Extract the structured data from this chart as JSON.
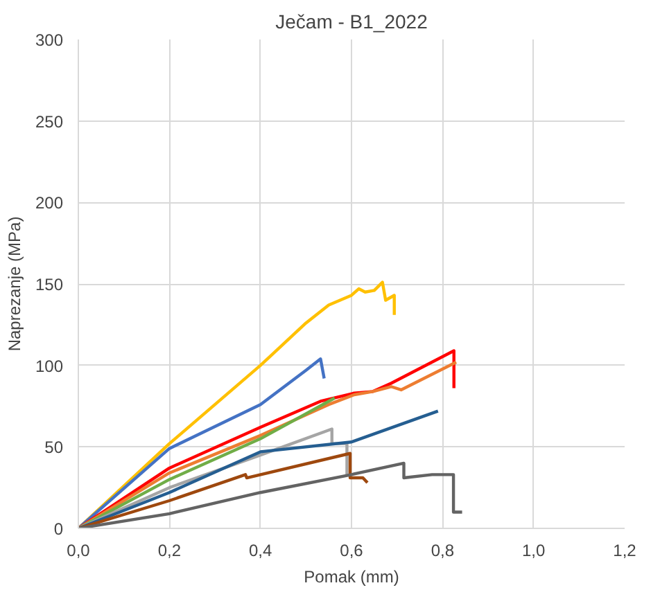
{
  "chart_data": {
    "type": "line",
    "title": "Ječam - B1_2022",
    "xlabel": "Pomak (mm)",
    "ylabel": "Naprezanje (MPa)",
    "xlim": [
      0,
      1.2
    ],
    "ylim": [
      0,
      300
    ],
    "xticks": [
      {
        "value": 0,
        "label": "0,0"
      },
      {
        "value": 0.2,
        "label": "0,2"
      },
      {
        "value": 0.4,
        "label": "0,4"
      },
      {
        "value": 0.6,
        "label": "0,6"
      },
      {
        "value": 0.8,
        "label": "0,8"
      },
      {
        "value": 1.0,
        "label": "1,0"
      },
      {
        "value": 1.2,
        "label": "1,2"
      }
    ],
    "yticks": [
      0,
      50,
      100,
      150,
      200,
      250,
      300
    ],
    "grid": true,
    "marker": "none",
    "line_style": "solid",
    "series": [
      {
        "color": "#ffc000",
        "x": [
          0,
          0.2,
          0.4,
          0.5,
          0.55,
          0.6,
          0.616,
          0.63,
          0.65,
          0.668,
          0.675,
          0.694,
          0.694
        ],
        "values": [
          0,
          52,
          100,
          126,
          137,
          143,
          147,
          145,
          146,
          151,
          140,
          143,
          131
        ]
      },
      {
        "color": "#4472c4",
        "x": [
          0,
          0.2,
          0.4,
          0.5,
          0.532,
          0.54
        ],
        "values": [
          0,
          49,
          76,
          97,
          104,
          92
        ]
      },
      {
        "color": "#ff0000",
        "x": [
          0,
          0.2,
          0.4,
          0.532,
          0.606,
          0.647,
          0.687,
          0.825,
          0.825
        ],
        "values": [
          0,
          37,
          62,
          78,
          83,
          84,
          89,
          109,
          86
        ]
      },
      {
        "color": "#ed7d31",
        "x": [
          0,
          0.2,
          0.4,
          0.55,
          0.606,
          0.647,
          0.687,
          0.709,
          0.83
        ],
        "values": [
          0,
          34,
          57,
          76,
          82,
          84,
          87,
          85,
          102
        ]
      },
      {
        "color": "#70ad47",
        "x": [
          0,
          0.2,
          0.4,
          0.563
        ],
        "values": [
          0,
          30,
          55,
          80
        ]
      },
      {
        "color": "#a5a5a5",
        "x": [
          0,
          0.2,
          0.4,
          0.557,
          0.557,
          0.59,
          0.59
        ],
        "values": [
          0,
          25,
          45,
          61,
          52,
          52,
          33
        ]
      },
      {
        "color": "#255e91",
        "x": [
          0,
          0.2,
          0.4,
          0.6,
          0.79
        ],
        "values": [
          0,
          22,
          47,
          53,
          72
        ]
      },
      {
        "color": "#9e480e",
        "x": [
          0,
          0.2,
          0.367,
          0.37,
          0.597,
          0.597,
          0.625,
          0.635
        ],
        "values": [
          0,
          17,
          33,
          31,
          46,
          31,
          31,
          28
        ]
      },
      {
        "color": "#636363",
        "x": [
          0,
          0.2,
          0.4,
          0.6,
          0.715,
          0.715,
          0.777,
          0.824,
          0.824,
          0.843
        ],
        "values": [
          0,
          9,
          22,
          33,
          40,
          31,
          33,
          33,
          10,
          10
        ]
      }
    ]
  }
}
